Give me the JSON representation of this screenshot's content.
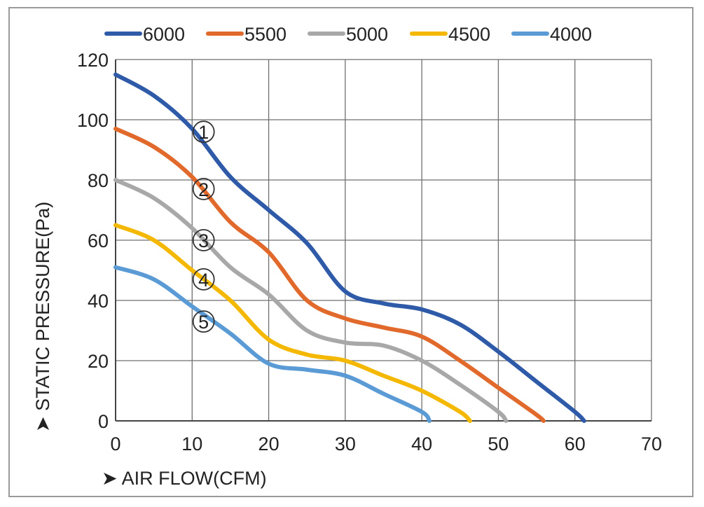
{
  "chart_data": {
    "type": "line",
    "xlabel": "AIR FLOW(CFM)",
    "ylabel": "STATIC PRESSURE(Pa)",
    "xlim": [
      0,
      70
    ],
    "ylim": [
      0,
      120
    ],
    "xticks": [
      "0",
      "10",
      "20",
      "30",
      "40",
      "50",
      "60",
      "70"
    ],
    "yticks": [
      "0",
      "20",
      "40",
      "60",
      "80",
      "100",
      "120"
    ],
    "grid": true,
    "legend_position": "top",
    "series": [
      {
        "name": "6000",
        "color": "#2e5aa8",
        "marker": "1",
        "x": [
          0,
          5,
          10,
          15,
          20,
          25,
          30,
          35,
          40,
          45,
          50,
          55,
          60,
          61.2
        ],
        "y": [
          115,
          108,
          97,
          81,
          70,
          59,
          43,
          39,
          37,
          32,
          23,
          13,
          3,
          0
        ]
      },
      {
        "name": "5500",
        "color": "#e0692b",
        "marker": "2",
        "x": [
          0,
          5,
          10,
          15,
          20,
          25,
          30,
          35,
          40,
          45,
          50,
          55,
          55.9
        ],
        "y": [
          97,
          91,
          81,
          66,
          56,
          40,
          34,
          31,
          28,
          20,
          11,
          2,
          0
        ]
      },
      {
        "name": "5000",
        "color": "#a8a8a8",
        "marker": "3",
        "x": [
          0,
          5,
          10,
          15,
          20,
          25,
          30,
          35,
          40,
          45,
          50,
          51
        ],
        "y": [
          80,
          74,
          64,
          51,
          42,
          30,
          26,
          25,
          20,
          12,
          3,
          0
        ]
      },
      {
        "name": "4500",
        "color": "#f5b800",
        "marker": "4",
        "x": [
          0,
          5,
          10,
          15,
          20,
          25,
          30,
          35,
          40,
          45,
          46.3
        ],
        "y": [
          65,
          60,
          50,
          40,
          27,
          22,
          20,
          15,
          10,
          3,
          0
        ]
      },
      {
        "name": "4000",
        "color": "#5b9bd5",
        "marker": "5",
        "x": [
          0,
          5,
          10,
          15,
          20,
          25,
          30,
          35,
          40,
          41
        ],
        "y": [
          51,
          47,
          38,
          29,
          19,
          17,
          15,
          9,
          3,
          0
        ]
      }
    ],
    "markers": [
      "①",
      "②",
      "③",
      "④",
      "⑤"
    ]
  },
  "legend_arrow": "➤"
}
